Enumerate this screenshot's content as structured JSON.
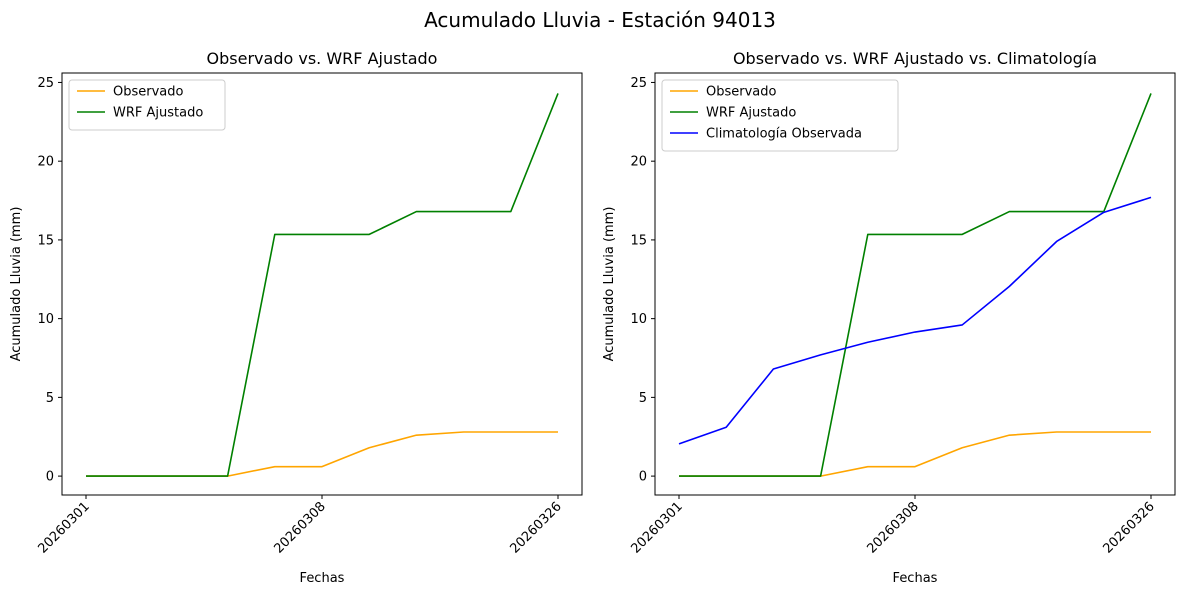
{
  "suptitle": "Acumulado Lluvia - Estación 94013",
  "colors": {
    "observado": "#ffa500",
    "wrf": "#008000",
    "climatologia": "#0000ff"
  },
  "chart_data": [
    {
      "type": "line",
      "title": "Observado vs. WRF Ajustado",
      "xlabel": "Fechas",
      "ylabel": "Acumulado Lluvia (mm)",
      "x_tick_labels": [
        "20260301",
        "20260308",
        "20260326"
      ],
      "x_tick_indices": [
        0,
        5,
        10
      ],
      "y_ticks": [
        0,
        5,
        10,
        15,
        20,
        25
      ],
      "ylim": [
        -1.2,
        25.6
      ],
      "grid": false,
      "legend_position": "top-left",
      "series": [
        {
          "name": "Observado",
          "color": "#ffa500",
          "values": [
            0,
            0,
            0,
            0,
            0.6,
            0.6,
            1.8,
            2.6,
            2.8,
            2.8,
            2.8
          ]
        },
        {
          "name": "WRF Ajustado",
          "color": "#008000",
          "values": [
            0,
            0,
            0,
            0,
            15.35,
            15.35,
            15.35,
            16.8,
            16.8,
            16.8,
            24.3
          ]
        }
      ]
    },
    {
      "type": "line",
      "title": "Observado vs. WRF Ajustado vs. Climatología",
      "xlabel": "Fechas",
      "ylabel": "Acumulado Lluvia (mm)",
      "x_tick_labels": [
        "20260301",
        "20260308",
        "20260326"
      ],
      "x_tick_indices": [
        0,
        5,
        10
      ],
      "y_ticks": [
        0,
        5,
        10,
        15,
        20,
        25
      ],
      "ylim": [
        -1.2,
        25.6
      ],
      "grid": false,
      "legend_position": "top-left",
      "series": [
        {
          "name": "Observado",
          "color": "#ffa500",
          "values": [
            0,
            0,
            0,
            0,
            0.6,
            0.6,
            1.8,
            2.6,
            2.8,
            2.8,
            2.8
          ]
        },
        {
          "name": "WRF Ajustado",
          "color": "#008000",
          "values": [
            0,
            0,
            0,
            0,
            15.35,
            15.35,
            15.35,
            16.8,
            16.8,
            16.8,
            24.3
          ]
        },
        {
          "name": "Climatología Observada",
          "color": "#0000ff",
          "values": [
            2.05,
            3.1,
            6.8,
            7.7,
            8.5,
            9.15,
            9.6,
            12.05,
            14.9,
            16.75,
            17.7
          ]
        }
      ]
    }
  ]
}
